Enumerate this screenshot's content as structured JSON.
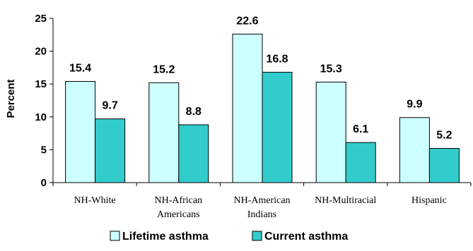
{
  "chart_data": {
    "type": "bar",
    "categories": [
      [
        "NH-White"
      ],
      [
        "NH-African",
        "Americans"
      ],
      [
        "NH-American",
        "Indians"
      ],
      [
        "NH-Multiracial"
      ],
      [
        "Hispanic"
      ]
    ],
    "series": [
      {
        "name": "Lifetime asthma",
        "values": [
          15.4,
          15.2,
          22.6,
          15.3,
          9.9
        ],
        "color": "#ccffff"
      },
      {
        "name": "Current asthma",
        "values": [
          9.7,
          8.8,
          16.8,
          6.1,
          5.2
        ],
        "color": "#33cccc"
      }
    ],
    "value_labels": [
      [
        "15.4",
        "15.2",
        "22.6",
        "15.3",
        "9.9"
      ],
      [
        "9.7",
        "8.8",
        "16.8",
        "6.1",
        "5.2"
      ]
    ],
    "ylabel": "Percent",
    "ylim": [
      0,
      25
    ],
    "yticks": [
      "0",
      "5",
      "10",
      "15",
      "20",
      "25"
    ],
    "grid": false,
    "legend_position": "bottom"
  }
}
